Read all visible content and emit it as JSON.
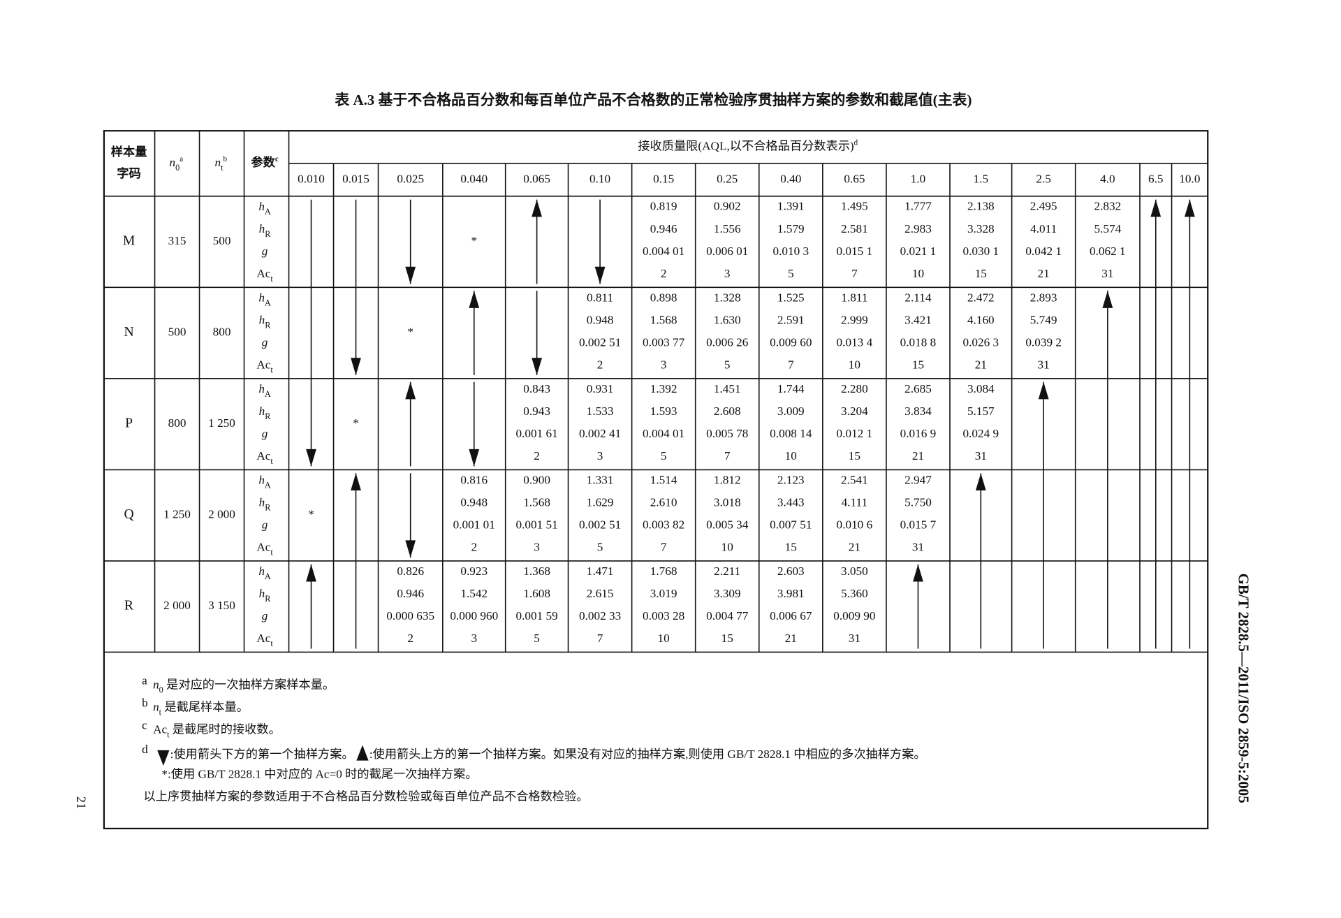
{
  "header": {
    "title": "表 A.3 基于不合格品百分数和每百单位产品不合格数的正常检验序贯抽样方案的参数和截尾值(主表)"
  },
  "side_text": "GB/T 2828.5—2011/ISO 2859-5:2005",
  "page_number": "21",
  "table": {
    "columns": {
      "code": [
        "样本量",
        "字码"
      ],
      "n0": {
        "main": "n",
        "sub": "0",
        "sup": "a"
      },
      "nt": {
        "main": "n",
        "sub": "t",
        "sup": "b"
      },
      "param": {
        "main": "参数",
        "sup": "c"
      },
      "aql": {
        "main": "接收质量限(AQL,以不合格品百分数表示)",
        "sup": "d"
      }
    },
    "aql_values": [
      "0.010",
      "0.015",
      "0.025",
      "0.040",
      "0.065",
      "0.10",
      "0.15",
      "0.25",
      "0.40",
      "0.65",
      "1.0",
      "1.5",
      "2.5",
      "4.0",
      "6.5",
      "10.0"
    ],
    "params": [
      {
        "main": "h",
        "sub": "A"
      },
      {
        "main": "h",
        "sub": "R"
      },
      {
        "main": "g",
        "sub": ""
      },
      {
        "main": "Ac",
        "sub": "t"
      }
    ],
    "rows": [
      {
        "code": "M",
        "n0": "315",
        "nt": "500",
        "cells": [
          null,
          null,
          null,
          "*",
          null,
          null,
          [
            "0.819",
            "0.946",
            "0.004 01",
            "2"
          ],
          [
            "0.902",
            "1.556",
            "0.006 01",
            "3"
          ],
          [
            "1.391",
            "1.579",
            "0.010 3",
            "5"
          ],
          [
            "1.495",
            "2.581",
            "0.015 1",
            "7"
          ],
          [
            "1.777",
            "2.983",
            "0.021 1",
            "10"
          ],
          [
            "2.138",
            "3.328",
            "0.030 1",
            "15"
          ],
          [
            "2.495",
            "4.011",
            "0.042 1",
            "21"
          ],
          [
            "2.832",
            "5.574",
            "0.062 1",
            "31"
          ],
          null,
          null
        ]
      },
      {
        "code": "N",
        "n0": "500",
        "nt": "800",
        "cells": [
          null,
          null,
          "*",
          null,
          null,
          [
            "0.811",
            "0.948",
            "0.002 51",
            "2"
          ],
          [
            "0.898",
            "1.568",
            "0.003 77",
            "3"
          ],
          [
            "1.328",
            "1.630",
            "0.006 26",
            "5"
          ],
          [
            "1.525",
            "2.591",
            "0.009 60",
            "7"
          ],
          [
            "1.811",
            "2.999",
            "0.013 4",
            "10"
          ],
          [
            "2.114",
            "3.421",
            "0.018 8",
            "15"
          ],
          [
            "2.472",
            "4.160",
            "0.026 3",
            "21"
          ],
          [
            "2.893",
            "5.749",
            "0.039 2",
            "31"
          ],
          null,
          null,
          null
        ]
      },
      {
        "code": "P",
        "n0": "800",
        "nt": "1 250",
        "cells": [
          null,
          "*",
          null,
          null,
          [
            "0.843",
            "0.943",
            "0.001 61",
            "2"
          ],
          [
            "0.931",
            "1.533",
            "0.002 41",
            "3"
          ],
          [
            "1.392",
            "1.593",
            "0.004 01",
            "5"
          ],
          [
            "1.451",
            "2.608",
            "0.005 78",
            "7"
          ],
          [
            "1.744",
            "3.009",
            "0.008 14",
            "10"
          ],
          [
            "2.280",
            "3.204",
            "0.012 1",
            "15"
          ],
          [
            "2.685",
            "3.834",
            "0.016 9",
            "21"
          ],
          [
            "3.084",
            "5.157",
            "0.024 9",
            "31"
          ],
          null,
          null,
          null,
          null
        ]
      },
      {
        "code": "Q",
        "n0": "1 250",
        "nt": "2 000",
        "cells": [
          "*",
          null,
          null,
          [
            "0.816",
            "0.948",
            "0.001 01",
            "2"
          ],
          [
            "0.900",
            "1.568",
            "0.001 51",
            "3"
          ],
          [
            "1.331",
            "1.629",
            "0.002 51",
            "5"
          ],
          [
            "1.514",
            "2.610",
            "0.003 82",
            "7"
          ],
          [
            "1.812",
            "3.018",
            "0.005 34",
            "10"
          ],
          [
            "2.123",
            "3.443",
            "0.007 51",
            "15"
          ],
          [
            "2.541",
            "4.111",
            "0.010 6",
            "21"
          ],
          [
            "2.947",
            "5.750",
            "0.015 7",
            "31"
          ],
          null,
          null,
          null,
          null,
          null
        ]
      },
      {
        "code": "R",
        "n0": "2 000",
        "nt": "3 150",
        "cells": [
          null,
          null,
          [
            "0.826",
            "0.946",
            "0.000 635",
            "2"
          ],
          [
            "0.923",
            "1.542",
            "0.000 960",
            "3"
          ],
          [
            "1.368",
            "1.608",
            "0.001 59",
            "5"
          ],
          [
            "1.471",
            "2.615",
            "0.002 33",
            "7"
          ],
          [
            "1.768",
            "3.019",
            "0.003 28",
            "10"
          ],
          [
            "2.211",
            "3.309",
            "0.004 77",
            "15"
          ],
          [
            "2.603",
            "3.981",
            "0.006 67",
            "21"
          ],
          [
            "3.050",
            "5.360",
            "0.009 90",
            "31"
          ],
          null,
          null,
          null,
          null,
          null,
          null
        ]
      }
    ]
  },
  "footnotes": {
    "a": {
      "mark": "a",
      "sym": "n",
      "sub": "0",
      "text": " 是对应的一次抽样方案样本量。"
    },
    "b": {
      "mark": "b",
      "sym": "n",
      "sub": "t",
      "text": " 是截尾样本量。"
    },
    "c": {
      "mark": "c",
      "sym": "Ac",
      "sub": "t",
      "text": " 是截尾时的接收数。"
    },
    "d": {
      "mark": "d",
      "down": ":使用箭头下方的第一个抽样方案。",
      "up": ":使用箭头上方的第一个抽样方案。如果没有对应的抽样方案,则使用 GB/T 2828.1 中相应的多次抽样方案。",
      "star": "*:使用 GB/T 2828.1 中对应的 Ac=0 时的截尾一次抽样方案。"
    },
    "note": "以上序贯抽样方案的参数适用于不合格品百分数检验或每百单位产品不合格数检验。"
  }
}
